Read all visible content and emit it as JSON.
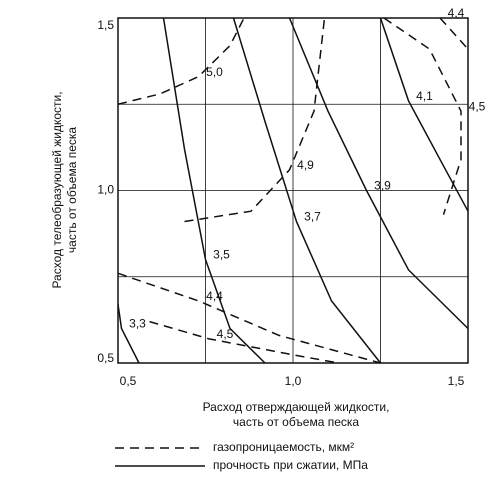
{
  "chart_data": {
    "type": "contour",
    "xlabel": [
      "Расход отверждающей жидкости,",
      "часть от объема песка"
    ],
    "ylabel": [
      "Расход телеобразующей жидкости,",
      "часть от объема песка"
    ],
    "xlim": [
      0.5,
      1.5
    ],
    "ylim": [
      0.5,
      1.5
    ],
    "xticks": [
      {
        "value": 0.5,
        "label": "0,5"
      },
      {
        "value": 0.75,
        "label": null
      },
      {
        "value": 1.0,
        "label": "1,0"
      },
      {
        "value": 1.25,
        "label": null
      },
      {
        "value": 1.5,
        "label": "1,5"
      }
    ],
    "yticks": [
      {
        "value": 0.5,
        "label": "0,5"
      },
      {
        "value": 0.75,
        "label": null
      },
      {
        "value": 1.0,
        "label": "1,0"
      },
      {
        "value": 1.25,
        "label": null
      },
      {
        "value": 1.5,
        "label": "1,5"
      }
    ],
    "grid": true,
    "series": [
      {
        "name": "газопроницаемость, мкм²",
        "color": "#111",
        "dashed": true,
        "contours": [
          {
            "level": 5.0,
            "label": "5,0",
            "x": [
              0.5,
              0.62,
              0.73,
              0.82,
              0.86
            ],
            "y": [
              1.25,
              1.28,
              1.33,
              1.42,
              1.5
            ]
          },
          {
            "level": 4.9,
            "label": "4,9",
            "x": [
              0.69,
              0.88,
              0.99,
              1.06,
              1.09
            ],
            "y": [
              0.91,
              0.94,
              1.06,
              1.23,
              1.5
            ]
          },
          {
            "level": 4.5,
            "label": "4,5",
            "x": [
              1.26,
              1.39,
              1.48,
              1.48,
              1.43
            ],
            "y": [
              1.5,
              1.41,
              1.23,
              1.09,
              0.93
            ]
          },
          {
            "level": 4.4,
            "label": "4,4",
            "x": [
              1.42,
              1.5
            ],
            "y": [
              1.5,
              1.41
            ]
          },
          {
            "level": 4.4,
            "label": "4,4",
            "x": [
              0.5,
              0.73,
              0.96,
              1.25
            ],
            "y": [
              0.76,
              0.68,
              0.58,
              0.5
            ]
          },
          {
            "level": 4.5,
            "label": "4,5",
            "x": [
              0.59,
              0.76,
              1.02,
              1.13
            ],
            "y": [
              0.62,
              0.57,
              0.52,
              0.5
            ]
          }
        ]
      },
      {
        "name": "прочность при сжатии, МПа",
        "color": "#111",
        "dashed": false,
        "contours": [
          {
            "level": 3.3,
            "label": "3,3",
            "x": [
              0.5,
              0.51,
              0.56
            ],
            "y": [
              0.67,
              0.6,
              0.5
            ]
          },
          {
            "level": 3.5,
            "label": "3,5",
            "x": [
              0.63,
              0.69,
              0.75,
              0.82,
              0.92
            ],
            "y": [
              1.5,
              1.12,
              0.8,
              0.6,
              0.5
            ]
          },
          {
            "level": 3.7,
            "label": "3,7",
            "x": [
              0.83,
              0.92,
              1.01,
              1.11,
              1.25
            ],
            "y": [
              1.5,
              1.2,
              0.91,
              0.68,
              0.5
            ]
          },
          {
            "level": 3.9,
            "label": "3,9",
            "x": [
              0.99,
              1.1,
              1.21,
              1.33,
              1.5
            ],
            "y": [
              1.5,
              1.23,
              1.0,
              0.77,
              0.6
            ]
          },
          {
            "level": 4.1,
            "label": "4,1",
            "x": [
              1.25,
              1.33,
              1.42,
              1.5
            ],
            "y": [
              1.5,
              1.26,
              1.09,
              0.94
            ]
          }
        ]
      }
    ]
  }
}
